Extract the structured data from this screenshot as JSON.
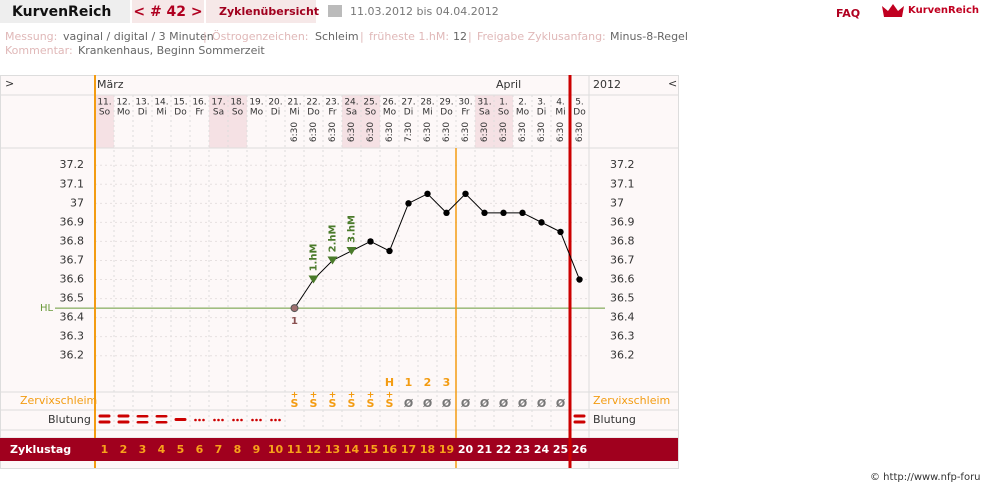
{
  "header": {
    "brand": "KurvenReich",
    "cycle": "< # 42 >",
    "overview": "Zyklenübersicht",
    "period": "11.03.2012 bis 04.04.2012",
    "faq": "FAQ",
    "logo": "KurvenReich"
  },
  "info": {
    "separator": "|",
    "fields": [
      {
        "label": "Messung:",
        "value": "vaginal / digital / 3 Minuten"
      },
      {
        "label": "Östrogenzeichen:",
        "value": "Schleim"
      },
      {
        "label": "früheste 1.hM:",
        "value": "12"
      },
      {
        "label": "Freigabe Zyklusanfang:",
        "value": "Minus-8-Regel"
      }
    ],
    "comment": {
      "label": "Kommentar:",
      "value": "Krankenhaus, Beginn Sommerzeit"
    }
  },
  "chart_data": {
    "type": "line",
    "nav_left": ">",
    "nav_right": "<",
    "year": "2012",
    "month_labels": [
      "März",
      null,
      null,
      null,
      null,
      null,
      null,
      null,
      null,
      null,
      null,
      null,
      null,
      null,
      null,
      null,
      null,
      null,
      null,
      null,
      null,
      "April",
      null,
      null,
      null,
      null
    ],
    "categories": [
      "11.",
      "12.",
      "13.",
      "14.",
      "15.",
      "16.",
      "17.",
      "18.",
      "19.",
      "20.",
      "21.",
      "22.",
      "23.",
      "24.",
      "25.",
      "26.",
      "27.",
      "28.",
      "29.",
      "30.",
      "31.",
      "1.",
      "2.",
      "3.",
      "4.",
      "5."
    ],
    "weekdays": [
      "So",
      "Mo",
      "Di",
      "Mi",
      "Do",
      "Fr",
      "Sa",
      "So",
      "Mo",
      "Di",
      "Mi",
      "Do",
      "Fr",
      "Sa",
      "So",
      "Mo",
      "Di",
      "Mi",
      "Do",
      "Fr",
      "Sa",
      "So",
      "Mo",
      "Di",
      "Mi",
      "Do"
    ],
    "times": [
      null,
      null,
      null,
      null,
      null,
      null,
      null,
      null,
      null,
      null,
      "6:30",
      "6:30",
      "6:30",
      "6:30",
      "6:30",
      "6:30",
      "7:30",
      "6:30",
      "6:30",
      "6:30",
      "6:30",
      "6:30",
      "6:30",
      "6:30",
      "6:30",
      "6:30"
    ],
    "values": [
      null,
      null,
      null,
      null,
      null,
      null,
      null,
      null,
      null,
      null,
      36.45,
      36.6,
      36.7,
      36.75,
      36.8,
      36.75,
      37.0,
      37.05,
      36.95,
      37.05,
      36.95,
      36.95,
      36.95,
      36.9,
      36.85,
      36.6
    ],
    "color": "#000000",
    "ylim": [
      36.02,
      37.28
    ],
    "yticks": [
      36.2,
      36.3,
      36.4,
      36.5,
      36.6,
      36.7,
      36.8,
      36.9,
      37,
      37.1,
      37.2
    ],
    "grid": true,
    "cover_line": {
      "label": "HL",
      "value": 36.45,
      "color": "#6a9a3a"
    },
    "low_labels": [
      null,
      null,
      null,
      null,
      null,
      null,
      null,
      null,
      null,
      null,
      "1",
      null,
      null,
      null,
      null,
      null,
      null,
      null,
      null,
      null,
      null,
      null,
      null,
      null,
      null,
      null
    ],
    "rise_labels": [
      null,
      null,
      null,
      null,
      null,
      null,
      null,
      null,
      null,
      null,
      null,
      "1.hM",
      "2.hM",
      "3.hM",
      null,
      null,
      null,
      null,
      null,
      null,
      null,
      null,
      null,
      null,
      null,
      null
    ],
    "peak_labels": [
      null,
      null,
      null,
      null,
      null,
      null,
      null,
      null,
      null,
      null,
      null,
      null,
      null,
      null,
      null,
      "H",
      "1",
      "2",
      "3",
      null,
      null,
      null,
      null,
      null,
      null,
      null
    ],
    "mucus": {
      "label": "Zervixschleim",
      "quality": [
        null,
        null,
        null,
        null,
        null,
        null,
        null,
        null,
        null,
        null,
        "+",
        "+",
        "+",
        "+",
        "+",
        "+",
        null,
        null,
        null,
        null,
        null,
        null,
        null,
        null,
        null,
        null
      ],
      "values": [
        null,
        null,
        null,
        null,
        null,
        null,
        null,
        null,
        null,
        null,
        "S",
        "S",
        "S",
        "S",
        "S",
        "S",
        "Ø",
        "Ø",
        "Ø",
        "Ø",
        "Ø",
        "Ø",
        "Ø",
        "Ø",
        "Ø",
        null
      ]
    },
    "bleeding": {
      "label": "Blutung",
      "values": [
        3,
        3,
        2,
        2,
        1,
        0.5,
        0.5,
        0.5,
        0.5,
        0.5,
        null,
        null,
        null,
        null,
        null,
        null,
        null,
        null,
        null,
        null,
        null,
        null,
        null,
        null,
        null,
        3
      ]
    },
    "cycle_day": {
      "label": "Zyklustag",
      "values": [
        1,
        2,
        3,
        4,
        5,
        6,
        7,
        8,
        9,
        10,
        11,
        12,
        13,
        14,
        15,
        16,
        17,
        18,
        19,
        20,
        21,
        22,
        23,
        24,
        25,
        26
      ]
    }
  },
  "footer": "© http://www.nfp-forum.de"
}
